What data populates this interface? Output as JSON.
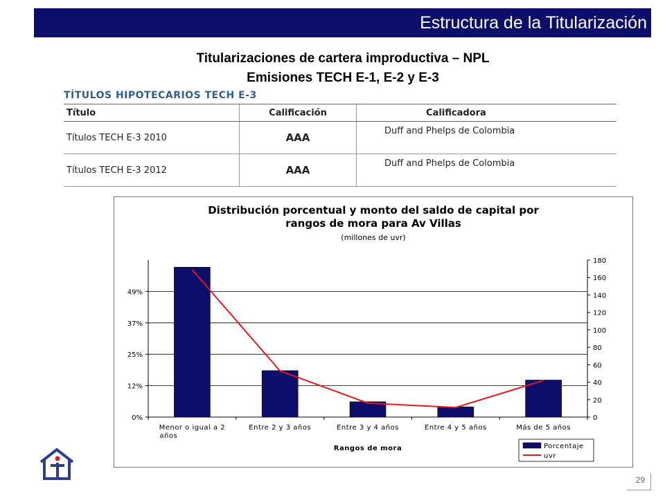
{
  "header": {
    "title": "Estructura de la Titularización"
  },
  "headline": {
    "line1": "Titularizaciones de cartera improductiva – NPL",
    "line2": "Emisiones TECH E-1, E-2 y E-3"
  },
  "table": {
    "caption": "TÍTULOS HIPOTECARIOS TECH E-3",
    "columns": [
      "Título",
      "Calificación",
      "Calificadora"
    ],
    "rows": [
      [
        "Títulos TECH E-3 2010",
        "AAA",
        "Duff and Phelps de Colombia"
      ],
      [
        "Títulos TECH E-3 2012",
        "AAA",
        "Duff and Phelps de Colombia"
      ]
    ]
  },
  "chart_data": {
    "type": "bar",
    "title": "Distribución porcentual y monto del saldo de capital por rangos de mora para Av Villas",
    "title_lines": [
      "Distribución porcentual y monto del saldo de capital por",
      "rangos de mora para Av Villas"
    ],
    "subtitle": "(millones de uvr)",
    "xlabel": "Rangos de mora",
    "categories": [
      "Menor o igual a 2 años",
      "Entre 2 y 3 años",
      "Entre 3 y 4 años",
      "Entre 4 y 5 años",
      "Más de 5 años"
    ],
    "category_lines": [
      [
        "Menor o igual a 2",
        "años"
      ],
      [
        "Entre 2 y 3 años"
      ],
      [
        "Entre 3 y 4 años"
      ],
      [
        "Entre 4 y 5 años"
      ],
      [
        "Más de 5 años"
      ]
    ],
    "left_axis": {
      "ticks": [
        "0%",
        "12%",
        "25%",
        "37%",
        "49%"
      ],
      "tick_values": [
        0,
        12.3,
        24.6,
        36.9,
        49.2
      ],
      "ylim": [
        0,
        61.5
      ]
    },
    "right_axis": {
      "ticks": [
        "0",
        "20",
        "40",
        "60",
        "80",
        "100",
        "120",
        "140",
        "160",
        "180"
      ],
      "ylim": [
        0,
        180
      ]
    },
    "series": [
      {
        "name": "Porcentaje",
        "type": "bar",
        "axis": "left",
        "color": "#0d0d6b",
        "values": [
          58.7,
          18.2,
          6.0,
          4.0,
          14.5
        ]
      },
      {
        "name": "uvr",
        "type": "line",
        "axis": "right",
        "color": "#e8161b",
        "values": [
          169,
          53,
          16,
          11,
          42
        ]
      }
    ],
    "legend": "bottom-right",
    "grid": "horizontal"
  },
  "footer": {
    "page_number": "29"
  },
  "icons": {
    "logo": "house-person-logo"
  }
}
